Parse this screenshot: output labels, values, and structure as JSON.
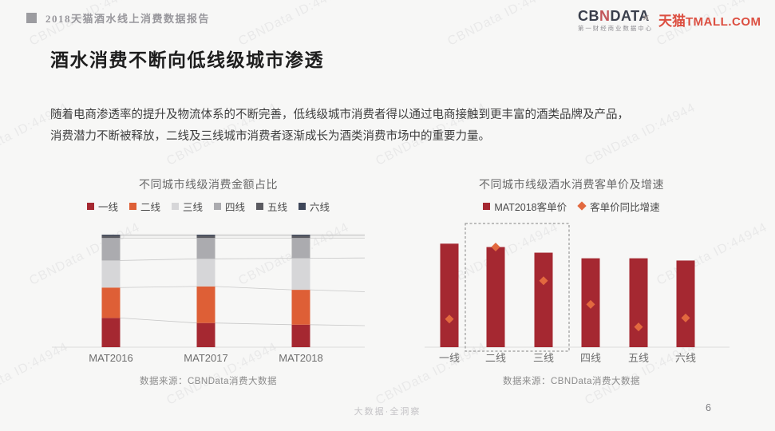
{
  "watermark": {
    "text": "CBNData ID:44944",
    "angle_deg": -27,
    "opacity": 0.13,
    "color": "#8E8E96"
  },
  "header": {
    "report_title": "2018天猫酒水线上消费数据报告",
    "logo": {
      "cbn_prefix": "CB",
      "cbn_mark": "N",
      "cbn_suffix": "DATA",
      "cbn_subtitle": "第一财经商业数据中心",
      "separator": "×",
      "tmall_cn": "天猫",
      "tmall_en": "TMALL.COM"
    }
  },
  "main": {
    "title": "酒水消费不断向低线级城市渗透",
    "paragraph_line1": "随着电商渗透率的提升及物流体系的不断完善，低线级城市消费者得以通过电商接触到更丰富的酒类品牌及产品，",
    "paragraph_line2": "消费潜力不断被释放，二线及三线城市消费者逐渐成长为酒类消费市场中的重要力量。"
  },
  "chart_data": [
    {
      "type": "bar",
      "variant": "100%-stacked-column",
      "title": "不同城市线级消费金额占比",
      "categories": [
        "MAT2016",
        "MAT2017",
        "MAT2018"
      ],
      "series": [
        {
          "name": "一线",
          "color": "#A52831",
          "values_pct": [
            26,
            21.5,
            20
          ]
        },
        {
          "name": "二线",
          "color": "#DE5F36",
          "values_pct": [
            27,
            32.5,
            31
          ]
        },
        {
          "name": "三线",
          "color": "#D6D6D8",
          "values_pct": [
            24,
            24.5,
            28
          ]
        },
        {
          "name": "四线",
          "color": "#ABABAF",
          "values_pct": [
            20,
            18.5,
            18
          ]
        },
        {
          "name": "五线",
          "color": "#5B5B61",
          "values_pct": [
            2,
            2,
            2
          ]
        },
        {
          "name": "六线",
          "color": "#3E4659",
          "values_pct": [
            1,
            1,
            1
          ]
        }
      ],
      "value_labels_shown": false,
      "estimation_note": "segment percentages estimated from bar pixel heights; no numeric labels shown in image",
      "legend_position": "top",
      "connector_lines": true,
      "grid": false,
      "source": "数据来源：CBNData消费大数据"
    },
    {
      "type": "bar",
      "variant": "column-with-diamond-markers",
      "title": "不同城市线级酒水消费客单价及增速",
      "categories": [
        "一线",
        "二线",
        "三线",
        "四线",
        "五线",
        "六线"
      ],
      "series": [
        {
          "name": "MAT2018客单价",
          "marker": "square",
          "color": "#A52831",
          "values_rel": [
            92,
            89,
            84,
            79,
            79,
            77
          ]
        },
        {
          "name": "客单价同比增速",
          "marker": "diamond",
          "color": "#E2693F",
          "values_rel": [
            25,
            89,
            59,
            38,
            18,
            26
          ]
        }
      ],
      "highlight_box": {
        "categories": [
          "二线",
          "三线"
        ],
        "style": "dashed"
      },
      "value_labels_shown": false,
      "estimation_note": "relative heights (% of plot height) estimated from pixels; no axis or value labels shown in image",
      "legend_position": "top",
      "grid": false,
      "source": "数据来源：CBNData消费大数据"
    }
  ],
  "footer": {
    "slogan": "大数据·全洞察",
    "page_number": "6"
  }
}
